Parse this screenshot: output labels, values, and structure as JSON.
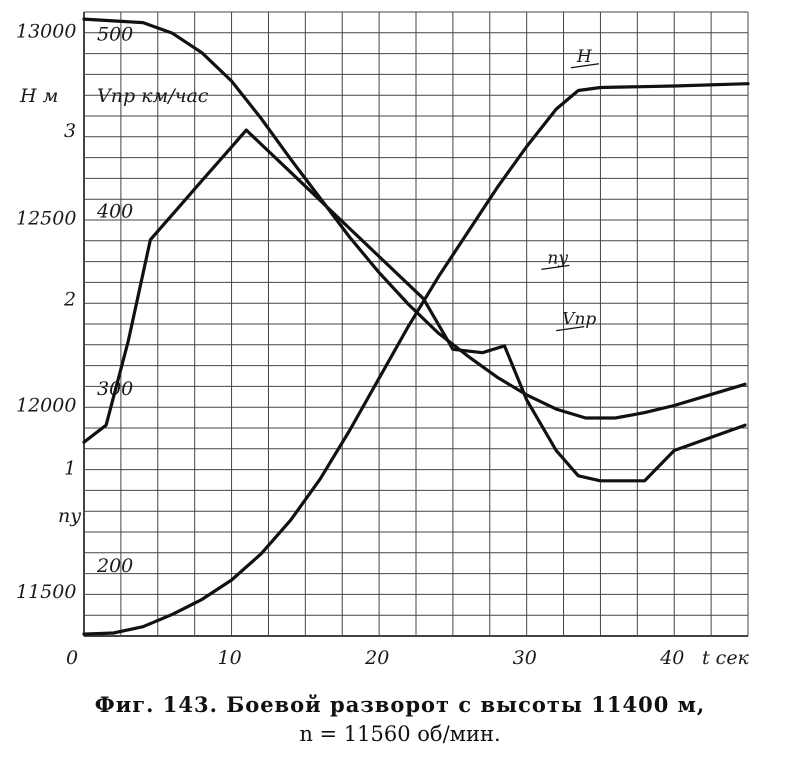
{
  "chart_data": {
    "type": "line",
    "xlabel": "t сек",
    "x_ticks": [
      "0",
      "10",
      "20",
      "30",
      "40"
    ],
    "xlim": [
      0,
      45
    ],
    "grid": true,
    "axes": {
      "H": {
        "label": "Н м",
        "ticks": [
          "11500",
          "12000",
          "12500",
          "13000"
        ],
        "ylim": [
          11380,
          13050
        ]
      },
      "V": {
        "label": "Vпр км/час",
        "ticks": [
          "200",
          "300",
          "400",
          "500"
        ],
        "ylim": [
          160,
          512
        ]
      },
      "n": {
        "label": "ny",
        "ticks": [
          "1",
          "2",
          "3"
        ],
        "ylim": [
          0,
          3.7
        ]
      }
    },
    "series": [
      {
        "name": "H",
        "axis": "H",
        "label_at": [
          33,
          12890
        ],
        "x": [
          0,
          2,
          4,
          6,
          8,
          10,
          12,
          14,
          16,
          18,
          20,
          22,
          24,
          26,
          28,
          30,
          32,
          33.5,
          35,
          40,
          45
        ],
        "y": [
          11385,
          11388,
          11405,
          11438,
          11478,
          11530,
          11600,
          11690,
          11800,
          11930,
          12070,
          12210,
          12340,
          12460,
          12580,
          12690,
          12790,
          12840,
          12848,
          12852,
          12858
        ]
      },
      {
        "name": "Vпр",
        "axis": "V",
        "label_at": [
          32,
          330
        ],
        "x": [
          0,
          2,
          4,
          6,
          8,
          10,
          12,
          14,
          16,
          18,
          20,
          22,
          24,
          26,
          28,
          30,
          32,
          34,
          36,
          38,
          40,
          42,
          44.8
        ],
        "y": [
          508,
          507,
          506,
          500,
          489,
          473,
          452,
          429,
          407,
          385,
          365,
          347,
          331,
          318,
          306,
          296,
          288,
          283,
          283,
          286,
          290,
          295,
          302
        ]
      },
      {
        "name": "ny",
        "axis": "n",
        "label_at": [
          31,
          2.15
        ],
        "x": [
          0,
          1.5,
          3,
          4.5,
          6,
          8,
          10,
          11,
          14,
          17,
          20,
          23,
          25,
          27,
          28.5,
          30,
          32,
          33.5,
          35,
          38,
          40,
          44.8
        ],
        "y": [
          1.15,
          1.25,
          1.75,
          2.35,
          2.5,
          2.7,
          2.9,
          3.0,
          2.75,
          2.5,
          2.25,
          2.0,
          1.7,
          1.68,
          1.72,
          1.4,
          1.1,
          0.95,
          0.92,
          0.92,
          1.1,
          1.25
        ]
      }
    ]
  },
  "caption": {
    "line1": "Фиг. 143. Боевой разворот с высоты 11400 м,",
    "line2": "n = 11560 об/мин."
  }
}
